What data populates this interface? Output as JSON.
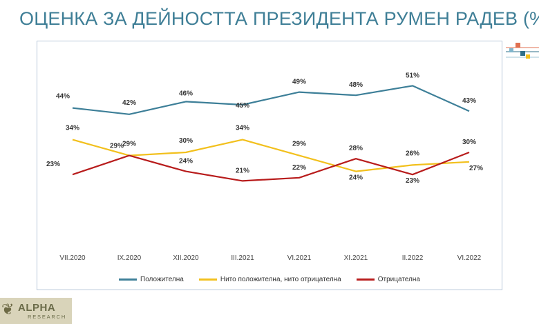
{
  "header": {
    "title": "ОЦЕНКА ЗА ДЕЙНОСТТА ПРЕЗИДЕНТА РУМЕН РАДЕВ (%)"
  },
  "chart_data": {
    "type": "line",
    "categories": [
      "VII.2020",
      "IX.2020",
      "XII.2020",
      "III.2021",
      "VI.2021",
      "XI.2021",
      "II.2022",
      "VI.2022"
    ],
    "series": [
      {
        "name": "Положителна",
        "color": "#3d7f98",
        "values": [
          44,
          42,
          46,
          45,
          49,
          48,
          51,
          43
        ],
        "labels": [
          "44%",
          "42%",
          "46%",
          "45%",
          "49%",
          "48%",
          "51%",
          "43%"
        ]
      },
      {
        "name": "Нито положителна, нито отрицателна",
        "color": "#f2c01d",
        "values": [
          34,
          29,
          30,
          34,
          29,
          24,
          26,
          27
        ],
        "labels": [
          "34%",
          "29%",
          "30%",
          "34%",
          "29%",
          "24%",
          "26%",
          "27%"
        ]
      },
      {
        "name": "Отрицателна",
        "color": "#b81c1c",
        "values": [
          23,
          29,
          24,
          21,
          22,
          28,
          23,
          30
        ],
        "labels": [
          "23%",
          "29%",
          "24%",
          "21%",
          "22%",
          "28%",
          "23%",
          "30%"
        ]
      }
    ],
    "ylim": [
      0,
      60
    ],
    "grid": false,
    "legend": "bottom"
  },
  "logo": {
    "name": "ALPHA",
    "sub": "RESEARCH",
    "mark": "❦"
  }
}
